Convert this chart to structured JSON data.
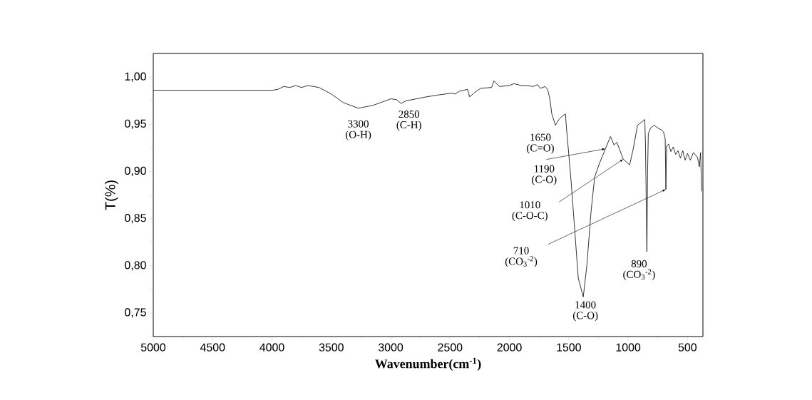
{
  "chart_data": {
    "type": "line",
    "xlabel": "Wavenumber(cm$^{-1}$)",
    "ylabel": "T(%)",
    "color": "#000000",
    "x": [
      5000,
      4500,
      4000,
      3950,
      3900,
      3850,
      3800,
      3750,
      3700,
      3650,
      3604,
      3500,
      3400,
      3273,
      3150,
      2996,
      2950,
      2912,
      2870,
      2822,
      2700,
      2600,
      2485,
      2460,
      2420,
      2353,
      2335,
      2300,
      2244,
      2150,
      2130,
      2094,
      2082,
      2000,
      1962,
      1900,
      1850,
      1800,
      1763,
      1739,
      1700,
      1679,
      1661,
      1643,
      1613,
      1583,
      1552,
      1528,
      1522,
      1480,
      1420,
      1378,
      1348,
      1312,
      1282,
      1240,
      1191,
      1149,
      1119,
      1095,
      1041,
      987,
      957,
      921,
      870,
      860,
      854,
      842,
      836,
      830,
      811,
      781,
      750,
      720,
      703,
      688,
      682,
      676,
      659,
      640,
      620,
      600,
      580,
      560,
      540,
      520,
      500,
      476,
      450,
      416,
      400,
      390,
      380
    ],
    "values": [
      0.986,
      0.986,
      0.986,
      0.987,
      0.99,
      0.989,
      0.991,
      0.989,
      0.991,
      0.99,
      0.989,
      0.982,
      0.973,
      0.967,
      0.97,
      0.977,
      0.976,
      0.972,
      0.975,
      0.976,
      0.979,
      0.981,
      0.983,
      0.982,
      0.985,
      0.987,
      0.979,
      0.983,
      0.988,
      0.989,
      0.996,
      0.991,
      0.99,
      0.991,
      0.993,
      0.991,
      0.991,
      0.99,
      0.992,
      0.988,
      0.99,
      0.987,
      0.978,
      0.961,
      0.949,
      0.955,
      0.959,
      0.961,
      0.95,
      0.889,
      0.787,
      0.767,
      0.8,
      0.858,
      0.894,
      0.909,
      0.924,
      0.937,
      0.928,
      0.931,
      0.913,
      0.907,
      0.924,
      0.949,
      0.954,
      0.955,
      0.93,
      0.815,
      0.9,
      0.94,
      0.946,
      0.949,
      0.946,
      0.944,
      0.942,
      0.935,
      0.881,
      0.927,
      0.929,
      0.921,
      0.926,
      0.918,
      0.922,
      0.914,
      0.922,
      0.912,
      0.919,
      0.912,
      0.92,
      0.915,
      0.905,
      0.92,
      0.879
    ],
    "xlim": [
      5000,
      370
    ],
    "ylim": [
      0.725,
      1.025
    ],
    "xticks": [
      {
        "value": 5000,
        "label": "5000"
      },
      {
        "value": 4750,
        "label": null
      },
      {
        "value": 4500,
        "label": "4500"
      },
      {
        "value": 4250,
        "label": null
      },
      {
        "value": 4000,
        "label": "4000"
      },
      {
        "value": 3750,
        "label": null
      },
      {
        "value": 3500,
        "label": "3500"
      },
      {
        "value": 3250,
        "label": null
      },
      {
        "value": 3000,
        "label": "3000"
      },
      {
        "value": 2750,
        "label": null
      },
      {
        "value": 2500,
        "label": "2500"
      },
      {
        "value": 2250,
        "label": null
      },
      {
        "value": 2000,
        "label": "2000"
      },
      {
        "value": 1750,
        "label": null
      },
      {
        "value": 1500,
        "label": "1500"
      },
      {
        "value": 1250,
        "label": null
      },
      {
        "value": 1000,
        "label": "1000"
      },
      {
        "value": 750,
        "label": null
      },
      {
        "value": 500,
        "label": "500"
      }
    ],
    "yticks": [
      {
        "value": 0.725,
        "label": null
      },
      {
        "value": 0.75,
        "label": "0,75"
      },
      {
        "value": 0.775,
        "label": null
      },
      {
        "value": 0.8,
        "label": "0,80"
      },
      {
        "value": 0.825,
        "label": null
      },
      {
        "value": 0.85,
        "label": "0,85"
      },
      {
        "value": 0.875,
        "label": null
      },
      {
        "value": 0.9,
        "label": "0,90"
      },
      {
        "value": 0.925,
        "label": null
      },
      {
        "value": 0.95,
        "label": "0,95"
      },
      {
        "value": 0.975,
        "label": null
      },
      {
        "value": 1.0,
        "label": "1,00"
      }
    ],
    "annotations": [
      {
        "text": "3300 (O-H)",
        "x": 3273,
        "y": 0.967
      },
      {
        "text": "2850 (C-H)",
        "x": 2912,
        "y": 0.972
      },
      {
        "text": "1650 (C=O)",
        "x": 1613,
        "y": 0.949
      },
      {
        "text": "1190 (C-O)",
        "x": 1191,
        "y": 0.924
      },
      {
        "text": "1010 (C-O-C)",
        "x": 1041,
        "y": 0.913
      },
      {
        "text": "710 (CO$_{3}$$^{-2}$)",
        "x": 682,
        "y": 0.881
      },
      {
        "text": "890 (CO$_{3}$$^{-2}$)",
        "x": 842,
        "y": 0.815
      },
      {
        "text": "1400 (C-O)",
        "x": 1378,
        "y": 0.767
      }
    ]
  }
}
